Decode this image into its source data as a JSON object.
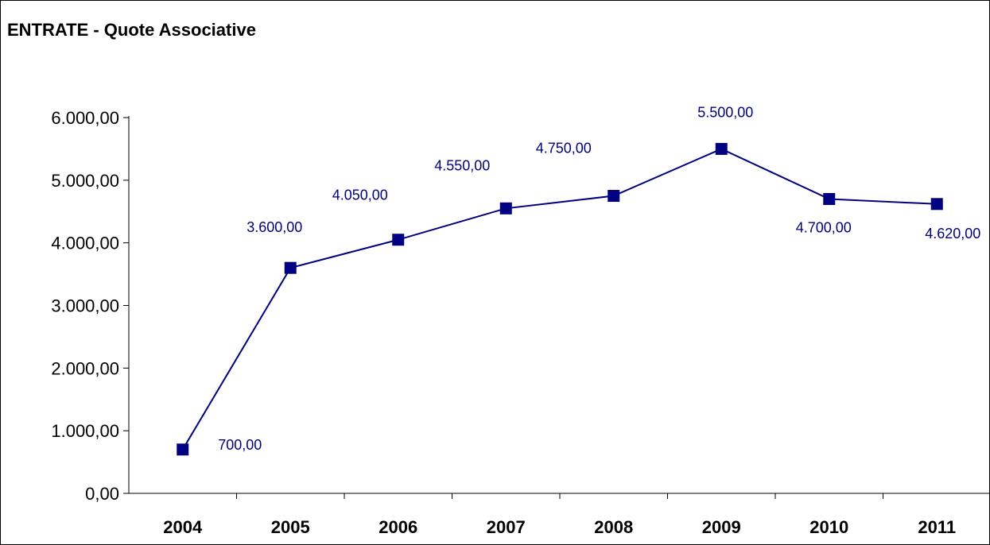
{
  "chart_data": {
    "type": "line",
    "title": "ENTRATE - Quote Associative",
    "xlabel": "",
    "ylabel": "",
    "categories": [
      "2004",
      "2005",
      "2006",
      "2007",
      "2008",
      "2009",
      "2010",
      "2011"
    ],
    "values": [
      700,
      3600,
      4050,
      4550,
      4750,
      5500,
      4700,
      4620
    ],
    "value_labels": [
      "700,00",
      "3.600,00",
      "4.050,00",
      "4.550,00",
      "4.750,00",
      "5.500,00",
      "4.700,00",
      "4.620,00"
    ],
    "ylim": [
      0,
      6000
    ],
    "yticks": [
      0,
      1000,
      2000,
      3000,
      4000,
      5000,
      6000
    ],
    "ytick_labels": [
      "0,00",
      "1.000,00",
      "2.000,00",
      "3.000,00",
      "4.000,00",
      "5.000,00",
      "6.000,00"
    ],
    "grid": false,
    "legend": "none",
    "color": "#000080"
  }
}
